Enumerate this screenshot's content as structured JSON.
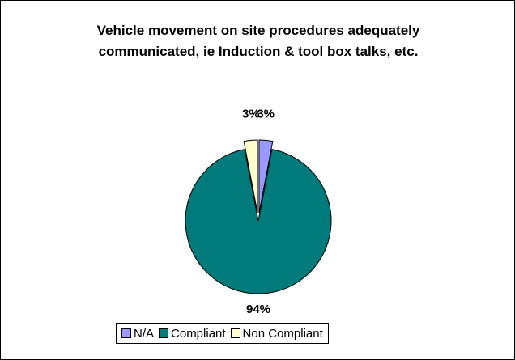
{
  "chart_data": {
    "type": "pie",
    "title": "Vehicle movement on site procedures adequately communicated, ie Induction & tool box talks, etc.",
    "categories": [
      "N/A",
      "Compliant",
      "Non Compliant"
    ],
    "values": [
      3,
      94,
      3
    ],
    "value_labels": [
      "3%",
      "94%",
      "3%"
    ],
    "colors": [
      "#9999ff",
      "#007a7a",
      "#ffffcc"
    ],
    "legend": "bottom"
  }
}
